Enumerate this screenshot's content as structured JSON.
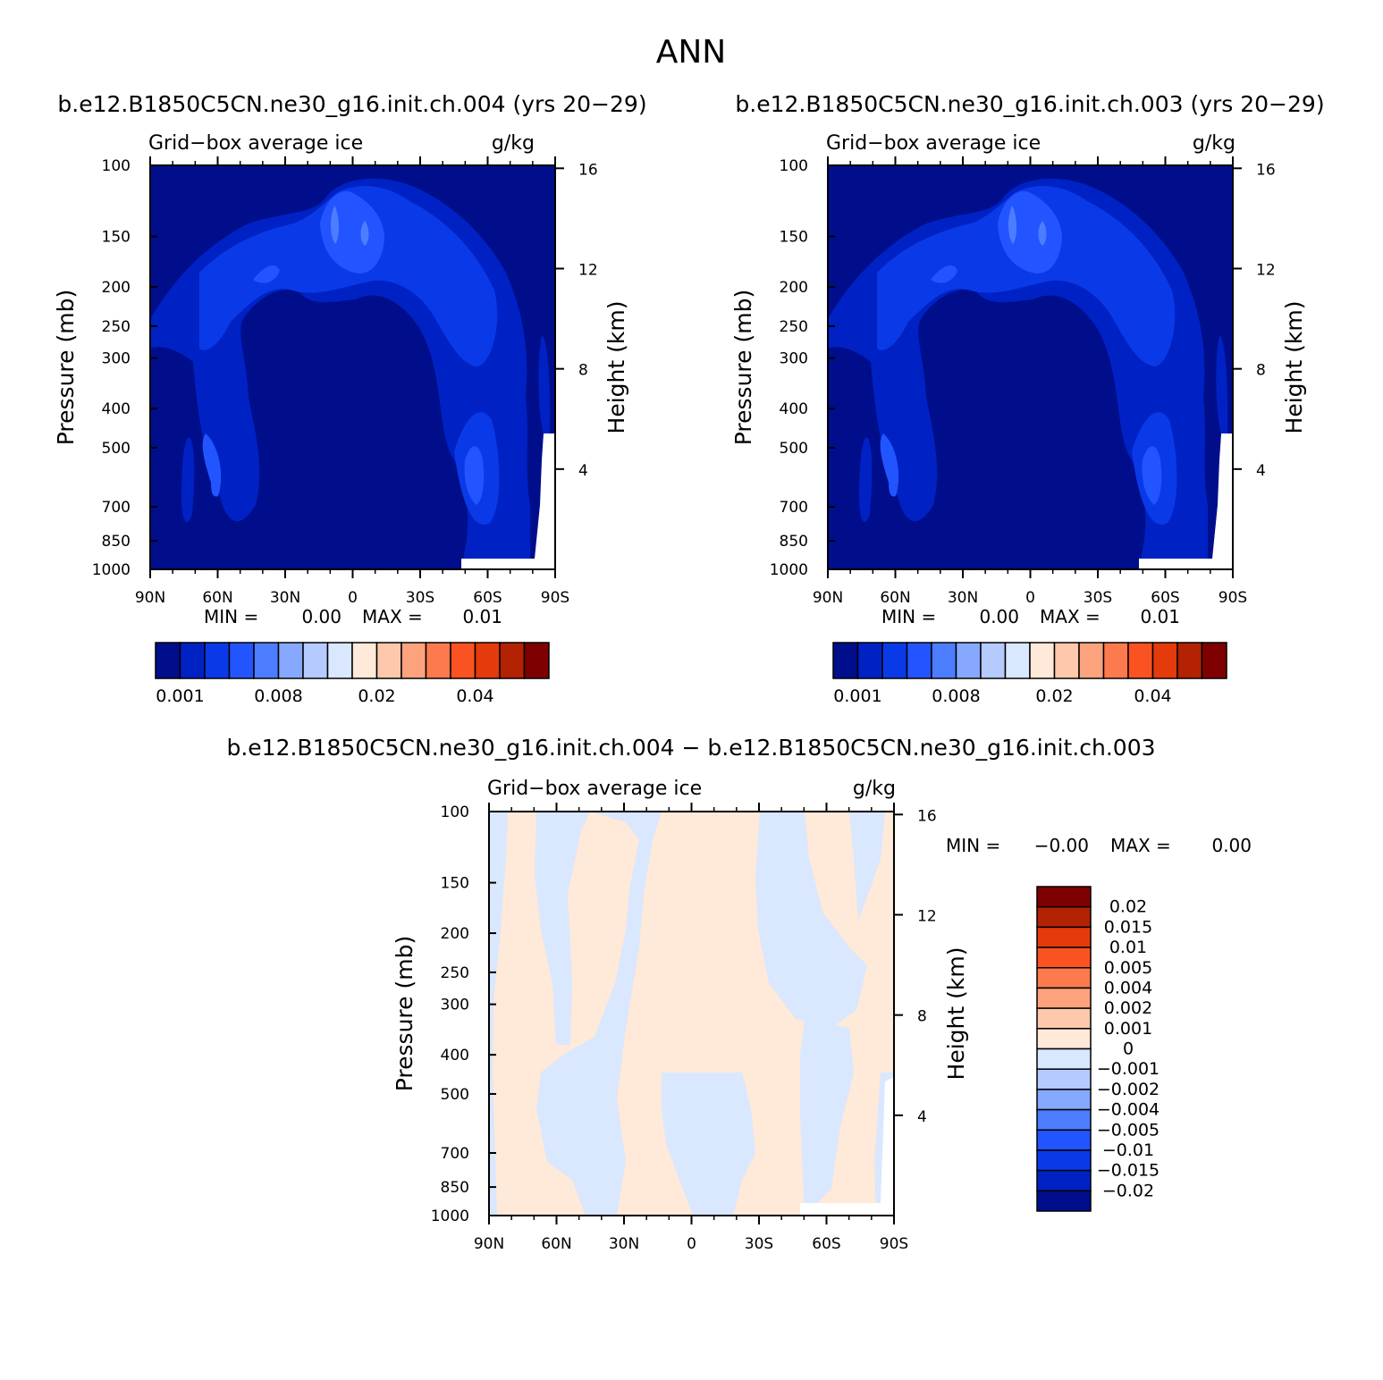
{
  "page_title": "ANN",
  "chart_data": [
    {
      "type": "heatmap",
      "title": "b.e12.B1850C5CN.ne30_g16.init.ch.004 (yrs 20-29)",
      "subtitle_left": "Grid-box average ice",
      "subtitle_right": "g/kg",
      "ylabel": "Pressure (mb)",
      "ylabel_right": "Height (km)",
      "xticks": [
        "90N",
        "60N",
        "30N",
        "0",
        "30S",
        "60S",
        "90S"
      ],
      "yticks": [
        "100",
        "150",
        "200",
        "250",
        "300",
        "400",
        "500",
        "700",
        "850",
        "1000"
      ],
      "y2ticks": [
        "16",
        "12",
        "8",
        "4"
      ],
      "min_label": "MIN =",
      "min_value": "0.00",
      "max_label": "MAX =",
      "max_value": "0.01",
      "colorbar_labels": [
        "0.001",
        "0.008",
        "0.02",
        "0.04"
      ],
      "colorbar_colors": [
        "#000e8c",
        "#0022c4",
        "#0a3ae8",
        "#2255ff",
        "#4d7dff",
        "#86a8ff",
        "#b5caff",
        "#d9e7ff",
        "#ffe9d8",
        "#fdc8ab",
        "#fca27d",
        "#fc7a4d",
        "#fb5222",
        "#e53a0c",
        "#b22203",
        "#7f0000"
      ]
    },
    {
      "type": "heatmap",
      "title": "b.e12.B1850C5CN.ne30_g16.init.ch.003 (yrs 20-29)",
      "subtitle_left": "Grid-box average ice",
      "subtitle_right": "g/kg",
      "ylabel": "Pressure (mb)",
      "ylabel_right": "Height (km)",
      "xticks": [
        "90N",
        "60N",
        "30N",
        "0",
        "30S",
        "60S",
        "90S"
      ],
      "yticks": [
        "100",
        "150",
        "200",
        "250",
        "300",
        "400",
        "500",
        "700",
        "850",
        "1000"
      ],
      "y2ticks": [
        "16",
        "12",
        "8",
        "4"
      ],
      "min_label": "MIN =",
      "min_value": "0.00",
      "max_label": "MAX =",
      "max_value": "0.01",
      "colorbar_labels": [
        "0.001",
        "0.008",
        "0.02",
        "0.04"
      ],
      "colorbar_colors": [
        "#000e8c",
        "#0022c4",
        "#0a3ae8",
        "#2255ff",
        "#4d7dff",
        "#86a8ff",
        "#b5caff",
        "#d9e7ff",
        "#ffe9d8",
        "#fdc8ab",
        "#fca27d",
        "#fc7a4d",
        "#fb5222",
        "#e53a0c",
        "#b22203",
        "#7f0000"
      ]
    },
    {
      "type": "heatmap",
      "title": "b.e12.B1850C5CN.ne30_g16.init.ch.004 - b.e12.B1850C5CN.ne30_g16.init.ch.003",
      "subtitle_left": "Grid-box average ice",
      "subtitle_right": "g/kg",
      "ylabel": "Pressure (mb)",
      "ylabel_right": "Height (km)",
      "xticks": [
        "90N",
        "60N",
        "30N",
        "0",
        "30S",
        "60S",
        "90S"
      ],
      "yticks": [
        "100",
        "150",
        "200",
        "250",
        "300",
        "400",
        "500",
        "700",
        "850",
        "1000"
      ],
      "y2ticks": [
        "16",
        "12",
        "8",
        "4"
      ],
      "min_label": "MIN =",
      "min_value": "-0.00",
      "max_label": "MAX =",
      "max_value": "0.00",
      "colorbar_labels": [
        "0.02",
        "0.015",
        "0.01",
        "0.005",
        "0.004",
        "0.002",
        "0.001",
        "0",
        "-0.001",
        "-0.002",
        "-0.004",
        "-0.005",
        "-0.01",
        "-0.015",
        "-0.02"
      ],
      "colorbar_colors": [
        "#7f0000",
        "#b22203",
        "#e53a0c",
        "#fb5222",
        "#fc7a4d",
        "#fca27d",
        "#fdc8ab",
        "#ffe9d8",
        "#d9e7ff",
        "#b5caff",
        "#86a8ff",
        "#4d7dff",
        "#2255ff",
        "#0a3ae8",
        "#0022c4",
        "#000e8c"
      ]
    }
  ]
}
